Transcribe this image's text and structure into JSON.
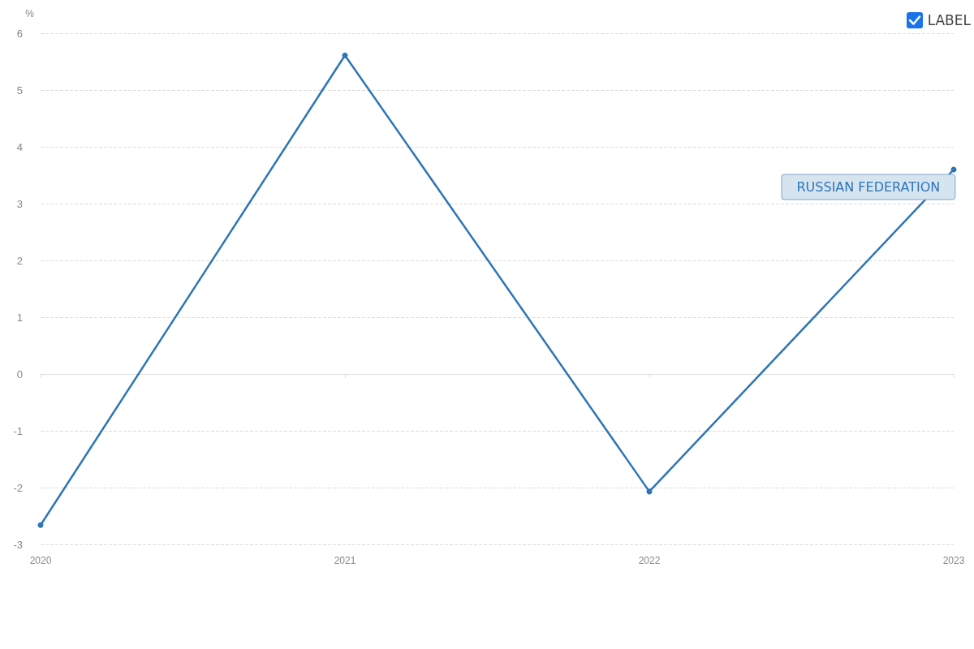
{
  "chart_data": {
    "type": "line",
    "ylabel": "%",
    "categories": [
      "2020",
      "2021",
      "2022",
      "2023"
    ],
    "series": [
      {
        "name": "RUSSIAN FEDERATION",
        "color": "#2e75b6",
        "values": [
          -2.66,
          5.61,
          -2.07,
          3.6
        ]
      }
    ],
    "ylim": [
      -3,
      6
    ],
    "yticks": [
      -3,
      -2,
      -1,
      0,
      1,
      2,
      3,
      4,
      5,
      6
    ],
    "grid": "y",
    "marker": "circle",
    "line_style": "solid",
    "legend": false,
    "annotations": [
      "LABEL"
    ]
  }
}
